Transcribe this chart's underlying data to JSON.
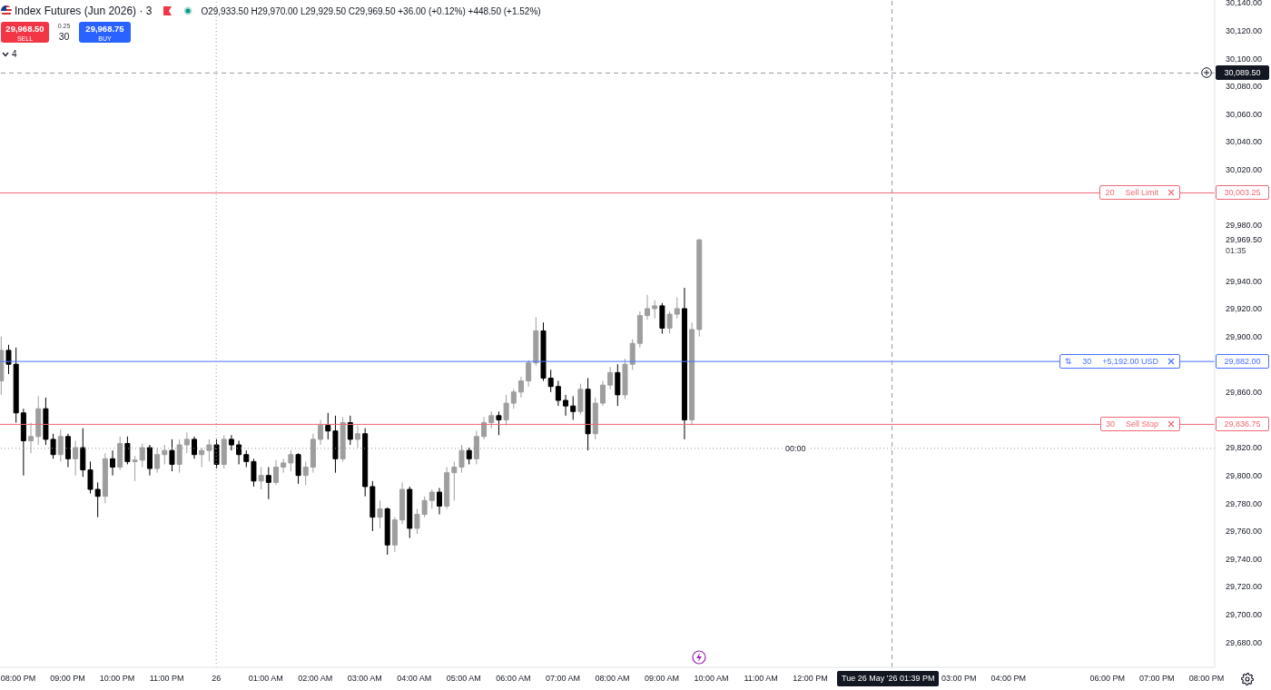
{
  "chart_data": {
    "type": "candlestick",
    "title": "Index Futures (Jun 2026) · 3",
    "subtitle": "O29,933.50 H29,970.00 L29,929.50 C29,969.50 +36.00 (+0.12%) +448.50 (+1.52%)",
    "x": [
      "2026-05-25T19:39",
      "2026-05-25T19:48",
      "2026-05-25T19:57",
      "2026-05-25T20:06",
      "2026-05-25T20:15",
      "2026-05-25T20:24",
      "2026-05-25T20:33",
      "2026-05-25T20:42",
      "2026-05-25T20:51",
      "2026-05-25T21:00",
      "2026-05-25T21:09",
      "2026-05-25T21:18",
      "2026-05-25T21:27",
      "2026-05-25T21:36",
      "2026-05-25T21:45",
      "2026-05-25T21:54",
      "2026-05-25T22:03",
      "2026-05-25T22:12",
      "2026-05-25T22:21",
      "2026-05-25T22:30",
      "2026-05-25T22:39",
      "2026-05-25T22:48",
      "2026-05-25T22:57",
      "2026-05-25T23:06",
      "2026-05-25T23:15",
      "2026-05-25T23:24",
      "2026-05-25T23:33",
      "2026-05-25T23:42",
      "2026-05-25T23:51",
      "2026-05-26T00:00",
      "2026-05-26T00:09",
      "2026-05-26T00:18",
      "2026-05-26T00:27",
      "2026-05-26T00:36",
      "2026-05-26T00:45",
      "2026-05-26T00:54",
      "2026-05-26T01:03",
      "2026-05-26T01:12",
      "2026-05-26T01:21",
      "2026-05-26T01:30",
      "2026-05-26T01:39",
      "2026-05-26T01:48",
      "2026-05-26T01:57",
      "2026-05-26T02:06",
      "2026-05-26T02:15",
      "2026-05-26T02:24",
      "2026-05-26T02:33",
      "2026-05-26T02:42",
      "2026-05-26T02:51",
      "2026-05-26T03:00",
      "2026-05-26T03:09",
      "2026-05-26T03:18",
      "2026-05-26T03:27",
      "2026-05-26T03:36",
      "2026-05-26T03:45",
      "2026-05-26T03:54",
      "2026-05-26T04:03",
      "2026-05-26T04:12",
      "2026-05-26T04:21",
      "2026-05-26T04:30",
      "2026-05-26T04:39",
      "2026-05-26T04:48",
      "2026-05-26T04:57",
      "2026-05-26T05:06",
      "2026-05-26T05:15",
      "2026-05-26T05:24",
      "2026-05-26T05:33",
      "2026-05-26T05:42",
      "2026-05-26T05:51",
      "2026-05-26T06:00",
      "2026-05-26T06:09",
      "2026-05-26T06:18",
      "2026-05-26T06:27",
      "2026-05-26T06:36",
      "2026-05-26T06:45",
      "2026-05-26T06:54",
      "2026-05-26T07:03",
      "2026-05-26T07:12",
      "2026-05-26T07:21",
      "2026-05-26T07:30",
      "2026-05-26T07:39",
      "2026-05-26T07:48",
      "2026-05-26T07:57",
      "2026-05-26T08:06",
      "2026-05-26T08:15",
      "2026-05-26T08:24",
      "2026-05-26T08:33",
      "2026-05-26T08:42",
      "2026-05-26T08:51",
      "2026-05-26T09:00",
      "2026-05-26T09:09",
      "2026-05-26T09:18",
      "2026-05-26T09:27",
      "2026-05-26T09:36",
      "2026-05-26T09:45"
    ],
    "ohlc": [
      [
        29868,
        29900,
        29858,
        29890
      ],
      [
        29890,
        29894,
        29873,
        29880
      ],
      [
        29880,
        29892,
        29838,
        29845
      ],
      [
        29845,
        29848,
        29800,
        29825
      ],
      [
        29825,
        29838,
        29816,
        29828
      ],
      [
        29828,
        29857,
        29822,
        29848
      ],
      [
        29848,
        29856,
        29822,
        29826
      ],
      [
        29826,
        29830,
        29812,
        29815
      ],
      [
        29815,
        29833,
        29810,
        29828
      ],
      [
        29828,
        29830,
        29806,
        29812
      ],
      [
        29812,
        29825,
        29800,
        29820
      ],
      [
        29820,
        29834,
        29799,
        29804
      ],
      [
        29804,
        29810,
        29787,
        29790
      ],
      [
        29790,
        29795,
        29770,
        29785
      ],
      [
        29785,
        29816,
        29780,
        29812
      ],
      [
        29812,
        29818,
        29800,
        29806
      ],
      [
        29806,
        29828,
        29804,
        29823
      ],
      [
        29823,
        29828,
        29808,
        29810
      ],
      [
        29810,
        29814,
        29796,
        29811
      ],
      [
        29811,
        29823,
        29806,
        29820
      ],
      [
        29820,
        29822,
        29800,
        29805
      ],
      [
        29805,
        29820,
        29802,
        29815
      ],
      [
        29815,
        29822,
        29808,
        29818
      ],
      [
        29818,
        29826,
        29803,
        29808
      ],
      [
        29808,
        29826,
        29802,
        29822
      ],
      [
        29822,
        29831,
        29816,
        29826
      ],
      [
        29826,
        29828,
        29812,
        29815
      ],
      [
        29815,
        29820,
        29806,
        29818
      ],
      [
        29818,
        29826,
        29810,
        29822
      ],
      [
        29822,
        29826,
        29805,
        29808
      ],
      [
        29808,
        29829,
        29805,
        29826
      ],
      [
        29826,
        29829,
        29818,
        29822
      ],
      [
        29822,
        29825,
        29808,
        29815
      ],
      [
        29815,
        29818,
        29806,
        29810
      ],
      [
        29810,
        29812,
        29792,
        29796
      ],
      [
        29796,
        29806,
        29790,
        29800
      ],
      [
        29800,
        29806,
        29783,
        29795
      ],
      [
        29795,
        29811,
        29793,
        29806
      ],
      [
        29806,
        29812,
        29802,
        29809
      ],
      [
        29809,
        29818,
        29803,
        29815
      ],
      [
        29815,
        29816,
        29794,
        29800
      ],
      [
        29800,
        29810,
        29793,
        29806
      ],
      [
        29806,
        29830,
        29802,
        29826
      ],
      [
        29826,
        29840,
        29822,
        29836
      ],
      [
        29836,
        29845,
        29826,
        29832
      ],
      [
        29832,
        29843,
        29802,
        29812
      ],
      [
        29812,
        29842,
        29810,
        29838
      ],
      [
        29838,
        29843,
        29822,
        29826
      ],
      [
        29826,
        29836,
        29820,
        29830
      ],
      [
        29830,
        29834,
        29785,
        29792
      ],
      [
        29792,
        29796,
        29760,
        29770
      ],
      [
        29770,
        29782,
        29762,
        29776
      ],
      [
        29776,
        29777,
        29743,
        29750
      ],
      [
        29750,
        29770,
        29745,
        29768
      ],
      [
        29768,
        29795,
        29765,
        29790
      ],
      [
        29790,
        29792,
        29755,
        29762
      ],
      [
        29762,
        29776,
        29758,
        29772
      ],
      [
        29772,
        29785,
        29770,
        29782
      ],
      [
        29782,
        29790,
        29776,
        29788
      ],
      [
        29788,
        29791,
        29772,
        29778
      ],
      [
        29778,
        29806,
        29776,
        29802
      ],
      [
        29802,
        29810,
        29782,
        29806
      ],
      [
        29806,
        29822,
        29802,
        29818
      ],
      [
        29818,
        29820,
        29808,
        29812
      ],
      [
        29812,
        29832,
        29808,
        29828
      ],
      [
        29828,
        29842,
        29826,
        29838
      ],
      [
        29838,
        29846,
        29834,
        29843
      ],
      [
        29843,
        29846,
        29829,
        29840
      ],
      [
        29840,
        29858,
        29836,
        29852
      ],
      [
        29852,
        29862,
        29848,
        29860
      ],
      [
        29860,
        29871,
        29856,
        29868
      ],
      [
        29868,
        29883,
        29864,
        29881
      ],
      [
        29881,
        29914,
        29879,
        29904
      ],
      [
        29904,
        29910,
        29868,
        29870
      ],
      [
        29870,
        29876,
        29860,
        29864
      ],
      [
        29864,
        29868,
        29850,
        29854
      ],
      [
        29854,
        29858,
        29843,
        29850
      ],
      [
        29850,
        29857,
        29840,
        29846
      ],
      [
        29846,
        29866,
        29844,
        29862
      ],
      [
        29862,
        29870,
        29818,
        29830
      ],
      [
        29830,
        29856,
        29826,
        29852
      ],
      [
        29852,
        29868,
        29850,
        29865
      ],
      [
        29865,
        29878,
        29862,
        29874
      ],
      [
        29874,
        29880,
        29850,
        29858
      ],
      [
        29858,
        29884,
        29855,
        29880
      ],
      [
        29880,
        29898,
        29876,
        29895
      ],
      [
        29895,
        29918,
        29892,
        29915
      ],
      [
        29915,
        29930,
        29912,
        29920
      ],
      [
        29920,
        29926,
        29913,
        29922
      ],
      [
        29922,
        29924,
        29902,
        29906
      ],
      [
        29906,
        29918,
        29902,
        29916
      ],
      [
        29916,
        29928,
        29913,
        29920
      ],
      [
        29920,
        29935,
        29826,
        29840
      ],
      [
        29840,
        29910,
        29836,
        29905
      ],
      [
        29905,
        29970,
        29900,
        29969.5
      ]
    ],
    "colors": [
      "#9e9e9e",
      "#000000",
      "#000000",
      "#000000",
      "#9e9e9e",
      "#9e9e9e",
      "#000000",
      "#000000",
      "#9e9e9e",
      "#000000",
      "#9e9e9e",
      "#000000",
      "#000000",
      "#000000",
      "#9e9e9e",
      "#000000",
      "#9e9e9e",
      "#000000",
      "#9e9e9e",
      "#9e9e9e",
      "#000000",
      "#9e9e9e",
      "#9e9e9e",
      "#000000",
      "#9e9e9e",
      "#9e9e9e",
      "#000000",
      "#9e9e9e",
      "#9e9e9e",
      "#000000",
      "#9e9e9e",
      "#000000",
      "#000000",
      "#000000",
      "#000000",
      "#9e9e9e",
      "#000000",
      "#9e9e9e",
      "#9e9e9e",
      "#9e9e9e",
      "#000000",
      "#9e9e9e",
      "#9e9e9e",
      "#9e9e9e",
      "#000000",
      "#000000",
      "#9e9e9e",
      "#000000",
      "#9e9e9e",
      "#000000",
      "#000000",
      "#9e9e9e",
      "#000000",
      "#9e9e9e",
      "#9e9e9e",
      "#000000",
      "#9e9e9e",
      "#9e9e9e",
      "#9e9e9e",
      "#000000",
      "#9e9e9e",
      "#9e9e9e",
      "#9e9e9e",
      "#000000",
      "#9e9e9e",
      "#9e9e9e",
      "#9e9e9e",
      "#000000",
      "#9e9e9e",
      "#9e9e9e",
      "#9e9e9e",
      "#9e9e9e",
      "#9e9e9e",
      "#000000",
      "#000000",
      "#000000",
      "#000000",
      "#000000",
      "#9e9e9e",
      "#000000",
      "#9e9e9e",
      "#9e9e9e",
      "#9e9e9e",
      "#000000",
      "#9e9e9e",
      "#9e9e9e",
      "#9e9e9e",
      "#9e9e9e",
      "#9e9e9e",
      "#000000",
      "#9e9e9e",
      "#9e9e9e",
      "#000000",
      "#9e9e9e",
      "#9e9e9e"
    ],
    "xlim": [
      "2026-05-25T19:38",
      "2026-05-26T20:10"
    ],
    "xticks": [
      {
        "value": "2026-05-25T20:00",
        "label": "08:00 PM"
      },
      {
        "value": "2026-05-25T21:00",
        "label": "09:00 PM"
      },
      {
        "value": "2026-05-25T22:00",
        "label": "10:00 PM"
      },
      {
        "value": "2026-05-25T23:00",
        "label": "11:00 PM"
      },
      {
        "value": "2026-05-26T00:00",
        "label": "26"
      },
      {
        "value": "2026-05-26T01:00",
        "label": "01:00 AM"
      },
      {
        "value": "2026-05-26T02:00",
        "label": "02:00 AM"
      },
      {
        "value": "2026-05-26T03:00",
        "label": "03:00 AM"
      },
      {
        "value": "2026-05-26T04:00",
        "label": "04:00 AM"
      },
      {
        "value": "2026-05-26T05:00",
        "label": "05:00 AM"
      },
      {
        "value": "2026-05-26T06:00",
        "label": "06:00 AM"
      },
      {
        "value": "2026-05-26T07:00",
        "label": "07:00 AM"
      },
      {
        "value": "2026-05-26T08:00",
        "label": "08:00 AM"
      },
      {
        "value": "2026-05-26T09:00",
        "label": "09:00 AM"
      },
      {
        "value": "2026-05-26T10:00",
        "label": "10:00 AM"
      },
      {
        "value": "2026-05-26T11:00",
        "label": "11:00 AM"
      },
      {
        "value": "2026-05-26T12:00",
        "label": "12:00 PM"
      },
      {
        "value": "2026-05-26T15:00",
        "label": "03:00 PM"
      },
      {
        "value": "2026-05-26T16:00",
        "label": "04:00 PM"
      },
      {
        "value": "2026-05-26T18:00",
        "label": "06:00 PM"
      },
      {
        "value": "2026-05-26T19:00",
        "label": "07:00 PM"
      },
      {
        "value": "2026-05-26T20:00",
        "label": "08:00 PM"
      }
    ],
    "ylim": [
      29662,
      30142
    ],
    "yticks": [
      {
        "value": 29680,
        "label": "29,680.00"
      },
      {
        "value": 29700,
        "label": "29,700.00"
      },
      {
        "value": 29720,
        "label": "29,720.00"
      },
      {
        "value": 29740,
        "label": "29,740.00"
      },
      {
        "value": 29760,
        "label": "29,760.00"
      },
      {
        "value": 29780,
        "label": "29,780.00"
      },
      {
        "value": 29800,
        "label": "29,800.00"
      },
      {
        "value": 29820,
        "label": "29,820.00"
      },
      {
        "value": 29860,
        "label": "29,860.00"
      },
      {
        "value": 29900,
        "label": "29,900.00"
      },
      {
        "value": 29920,
        "label": "29,920.00"
      },
      {
        "value": 29940,
        "label": "29,940.00"
      },
      {
        "value": 29969.5,
        "label": "29,969.50"
      },
      {
        "value": 29980,
        "label": "29,980.00"
      },
      {
        "value": 30020,
        "label": "30,020.00"
      },
      {
        "value": 30040,
        "label": "30,040.00"
      },
      {
        "value": 30060,
        "label": "30,060.00"
      },
      {
        "value": 30080,
        "label": "30,080.00"
      },
      {
        "value": 30100,
        "label": "30,100.00"
      },
      {
        "value": 30120,
        "label": "30,120.00"
      },
      {
        "value": 30140,
        "label": "30,140.00"
      }
    ],
    "ref_lines": [
      {
        "axis": "y",
        "value": 30003.25,
        "label": "30,003.25",
        "color": "#ef6a75"
      },
      {
        "axis": "y",
        "value": 29882,
        "label": "29,882.00",
        "color": "#4a72ff"
      },
      {
        "axis": "y",
        "value": 29836.75,
        "label": "29,836.75",
        "color": "#ef6a75"
      },
      {
        "axis": "y",
        "value": 30089.5,
        "label": "30,089.50",
        "color": "#9598a1",
        "line_style": "dashed"
      },
      {
        "axis": "x",
        "value": "2026-05-26T13:39",
        "label": "Tue 26 May '26 01:39 PM",
        "color": "#9598a1",
        "line_style": "dashed"
      },
      {
        "axis": "x",
        "value": "2026-05-26T00:00",
        "color": "#9598a1",
        "line_style": "dotted"
      },
      {
        "axis": "y",
        "value": 29819.5,
        "color": "#9598a1",
        "line_style": "dotted"
      }
    ],
    "annotations": [
      "29,968.50",
      "SELL",
      "0.25",
      "30",
      "29,968.75",
      "BUY",
      "4",
      "01:35",
      {
        "text": "20",
        "y": 30003.25
      },
      {
        "text": "Sell Limit",
        "y": 30003.25
      },
      {
        "text": "⇅",
        "y": 29882
      },
      {
        "text": "30",
        "y": 29882
      },
      {
        "text": "+5,192.00 USD",
        "y": 29882
      },
      {
        "text": "30",
        "y": 29836.75
      },
      {
        "text": "Sell Stop",
        "y": 29836.75
      },
      {
        "text": "00:00",
        "y": 29819.5
      }
    ]
  }
}
